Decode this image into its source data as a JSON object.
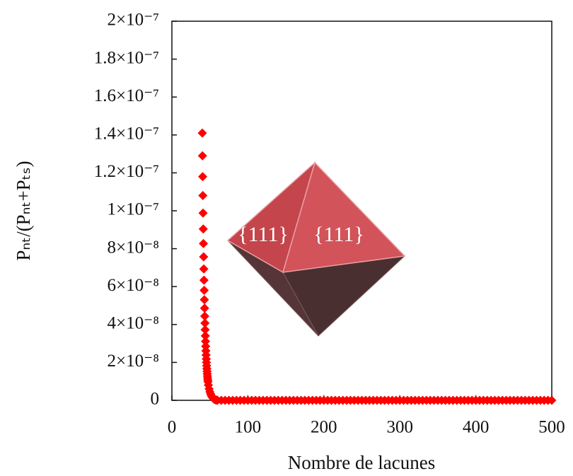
{
  "chart_data": {
    "type": "scatter",
    "ylabel": "Pₙₜ/(Pₙₜ+Pₜₛ)",
    "xlabel": "Nombre de lacunes",
    "annotations": [
      "{111}",
      "{111}"
    ],
    "xlim": [
      0,
      500
    ],
    "xticks": [
      0,
      100,
      200,
      300,
      400,
      500
    ],
    "ylim": [
      0,
      2e-07
    ],
    "yticks": [
      0,
      {
        "value": 2e-08,
        "label": "2×10⁻⁸"
      },
      {
        "value": 4e-08,
        "label": "4×10⁻⁸"
      },
      {
        "value": 6e-08,
        "label": "6×10⁻⁸"
      },
      {
        "value": 8e-08,
        "label": "8×10⁻⁸"
      },
      {
        "value": 1e-07,
        "label": "1×10⁻⁷"
      },
      {
        "value": 1.2e-07,
        "label": "1.2×10⁻⁷"
      },
      {
        "value": 1.4e-07,
        "label": "1.4×10⁻⁷"
      },
      {
        "value": 1.6e-07,
        "label": "1.6×10⁻⁷"
      },
      {
        "value": 1.8e-07,
        "label": "1.8×10⁻⁷"
      },
      {
        "value": 2e-07,
        "label": "2×10⁻⁷"
      }
    ],
    "color": "#ff0000",
    "x": [
      40,
      40.25,
      40.5,
      40.75,
      41,
      41.25,
      41.5,
      41.75,
      42,
      42.25,
      42.5,
      42.75,
      43,
      43.25,
      43.5,
      43.75,
      44,
      44.25,
      44.5,
      44.75,
      45,
      45.25,
      45.5,
      45.75,
      46,
      46.25,
      46.5,
      46.75,
      47,
      47.25,
      47.5,
      48,
      49,
      50,
      51,
      52,
      53,
      54,
      55,
      56,
      57,
      58,
      59,
      60,
      65,
      70,
      75,
      80,
      85,
      90,
      95,
      100,
      105,
      110,
      115,
      120,
      125,
      130,
      135,
      140,
      145,
      150,
      155,
      160,
      165,
      170,
      175,
      180,
      185,
      190,
      195,
      200,
      205,
      210,
      215,
      220,
      225,
      230,
      235,
      240,
      245,
      250,
      255,
      260,
      265,
      270,
      275,
      280,
      285,
      290,
      295,
      300,
      305,
      310,
      315,
      320,
      325,
      330,
      335,
      340,
      345,
      350,
      355,
      360,
      365,
      370,
      375,
      380,
      385,
      390,
      395,
      400,
      405,
      410,
      415,
      420,
      425,
      430,
      435,
      440,
      445,
      450,
      455,
      460,
      465,
      470,
      475,
      480,
      485,
      490,
      495,
      500
    ],
    "values": [
      1.41e-07,
      1.29e-07,
      1.18e-07,
      1.08e-07,
      9.88e-08,
      9.04e-08,
      8.27e-08,
      7.57e-08,
      6.93e-08,
      6.34e-08,
      5.8e-08,
      5.31e-08,
      4.86e-08,
      4.44e-08,
      4.07e-08,
      3.72e-08,
      3.4e-08,
      3.11e-08,
      2.85e-08,
      2.61e-08,
      2.39e-08,
      2.18e-08,
      2e-08,
      1.83e-08,
      1.67e-08,
      1.53e-08,
      1.4e-08,
      1.28e-08,
      1.17e-08,
      1.07e-08,
      9.8e-09,
      8e-09,
      6e-09,
      4.5e-09,
      3.3e-09,
      2.4e-09,
      1.7e-09,
      1.2e-09,
      8e-10,
      5e-10,
      3e-10,
      2e-10,
      1e-10,
      5e-11,
      1e-11,
      1e-11,
      1e-11,
      1e-11,
      1e-11,
      1e-11,
      1e-11,
      1e-11,
      1e-11,
      1e-11,
      1e-11,
      1e-11,
      1e-11,
      1e-11,
      1e-11,
      1e-11,
      1e-11,
      1e-11,
      1e-11,
      1e-11,
      1e-11,
      1e-11,
      1e-11,
      1e-11,
      1e-11,
      1e-11,
      1e-11,
      1e-11,
      1e-11,
      1e-11,
      1e-11,
      1e-11,
      1e-11,
      1e-11,
      1e-11,
      1e-11,
      1e-11,
      1e-11,
      1e-11,
      1e-11,
      1e-11,
      1e-11,
      1e-11,
      1e-11,
      1e-11,
      1e-11,
      1e-11,
      1e-11,
      1e-11,
      1e-11,
      1e-11,
      1e-11,
      1e-11,
      1e-11,
      1e-11,
      1e-11,
      1e-11,
      1e-11,
      1e-11,
      1e-11,
      1e-11,
      1e-11,
      1e-11,
      1e-11,
      1e-11,
      1e-11,
      1e-11,
      1e-11,
      1e-11,
      1e-11,
      1e-11,
      1e-11,
      1e-11,
      1e-11,
      1e-11,
      1e-11,
      1e-11,
      1e-11,
      1e-11,
      1e-11,
      1e-11,
      1e-11,
      1e-11,
      1e-11,
      1e-11,
      1e-11,
      1e-11,
      1e-11
    ]
  }
}
